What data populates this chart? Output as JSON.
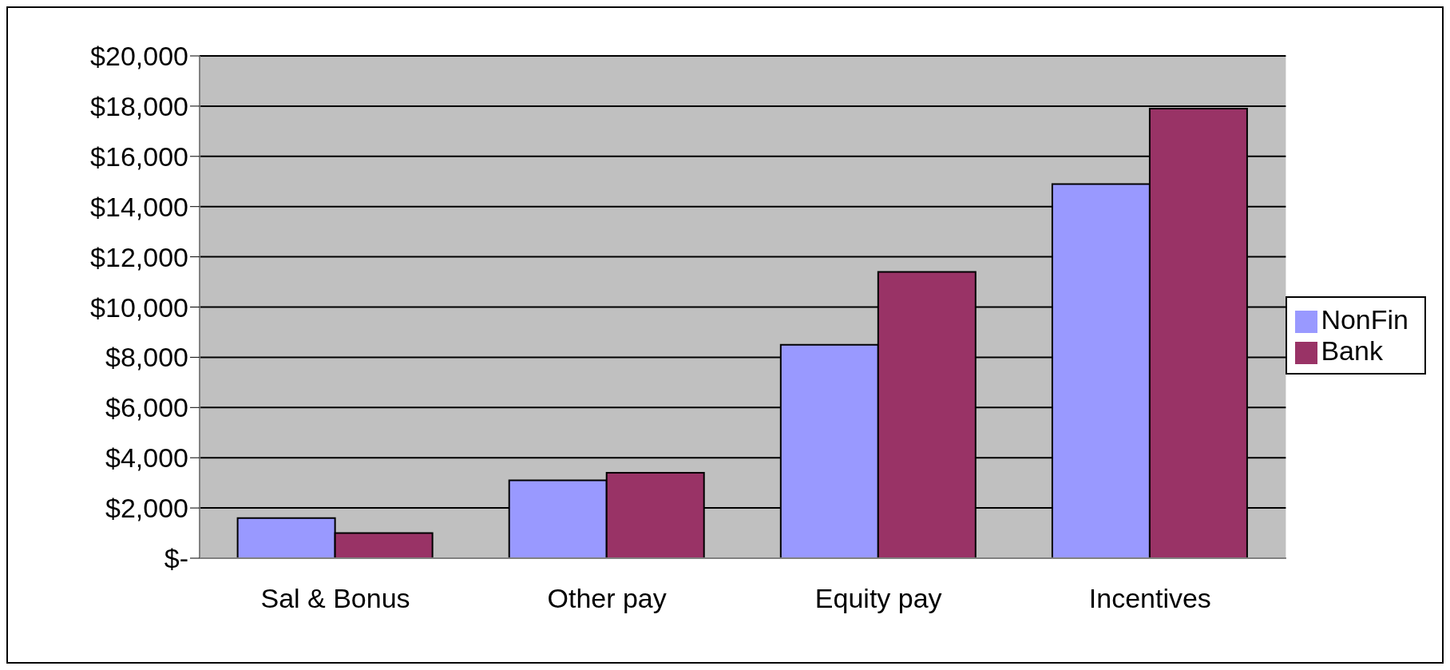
{
  "chart_data": {
    "type": "bar",
    "categories": [
      "Sal & Bonus",
      "Other pay",
      "Equity pay",
      "Incentives"
    ],
    "series": [
      {
        "name": "NonFin",
        "color": "#9999ff",
        "values": [
          1600,
          3100,
          8500,
          14900
        ]
      },
      {
        "name": "Bank",
        "color": "#993366",
        "values": [
          1000,
          3400,
          11400,
          17900
        ]
      }
    ],
    "ylim": [
      0,
      20000
    ],
    "yticks": [
      {
        "value": 0,
        "label": "$-"
      },
      {
        "value": 2000,
        "label": "$2,000"
      },
      {
        "value": 4000,
        "label": "$4,000"
      },
      {
        "value": 6000,
        "label": "$6,000"
      },
      {
        "value": 8000,
        "label": "$8,000"
      },
      {
        "value": 10000,
        "label": "$10,000"
      },
      {
        "value": 12000,
        "label": "$12,000"
      },
      {
        "value": 14000,
        "label": "$14,000"
      },
      {
        "value": 16000,
        "label": "$16,000"
      },
      {
        "value": 18000,
        "label": "$18,000"
      },
      {
        "value": 20000,
        "label": "$20,000"
      }
    ],
    "grid": "y",
    "legend": "right"
  }
}
